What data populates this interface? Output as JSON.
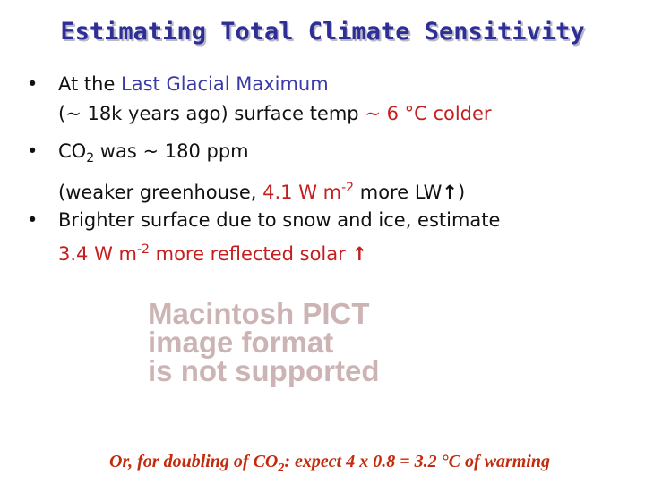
{
  "title": "Estimating Total Climate Sensitivity",
  "bullets": [
    {
      "parts": [
        "At the ",
        "Last Glacial Maximum",
        "(~ 18k years ago) surface temp ",
        "~ 6 °C colder"
      ]
    },
    {
      "parts": [
        "CO",
        "2",
        " was ~ 180 ppm",
        "(weaker greenhouse, ",
        "4.1 W m",
        "-2",
        " more LW",
        "↑",
        ")"
      ]
    },
    {
      "parts": [
        "Brighter surface due to snow and ice, estimate",
        "3.4 W m",
        "-2",
        " more reflected solar ",
        "↑"
      ]
    }
  ],
  "placeholder": {
    "lines": [
      "Macintosh PICT",
      "image format",
      "is not supported"
    ]
  },
  "footer": [
    "Or, for doubling of CO",
    "2",
    ": expect 4 x 0.8 = 3.2 °C of warming"
  ]
}
